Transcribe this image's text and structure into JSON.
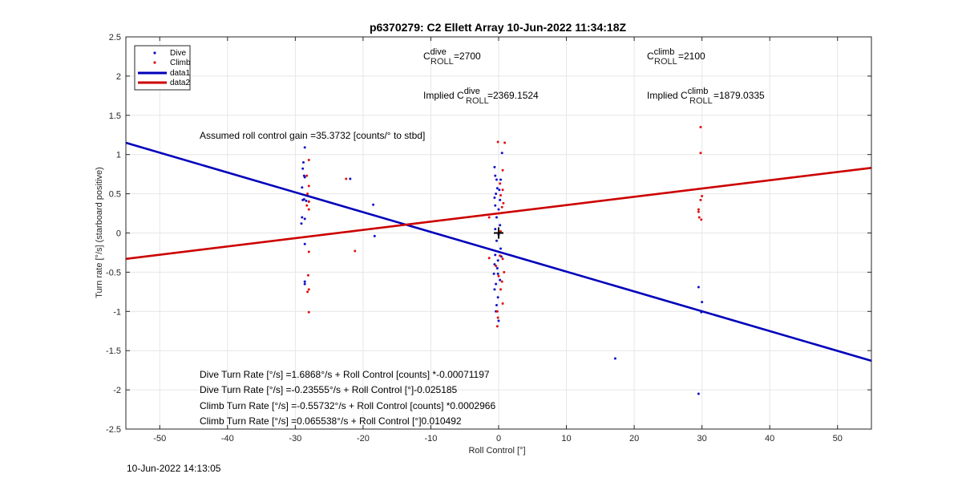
{
  "chart_data": {
    "type": "scatter",
    "title": "p6370279: C2 Ellett Array 10-Jun-2022 11:34:18Z",
    "xlabel": "Roll Control [°]",
    "ylabel": "Turn rate [°/s] (starboard positive)",
    "xlim": [
      -55,
      55
    ],
    "ylim": [
      -2.5,
      2.5
    ],
    "xticks": [
      -50,
      -40,
      -30,
      -20,
      -10,
      0,
      10,
      20,
      30,
      40,
      50
    ],
    "yticks": [
      -2.5,
      -2,
      -1.5,
      -1,
      -0.5,
      0,
      0.5,
      1,
      1.5,
      2,
      2.5
    ],
    "xtick_labels": [
      "-50",
      "-40",
      "-30",
      "-20",
      "-10",
      "0",
      "10",
      "20",
      "30",
      "40",
      "50"
    ],
    "ytick_labels": [
      "-2.5",
      "-2",
      "-1.5",
      "-1",
      "-0.5",
      "0",
      "0.5",
      "1",
      "1.5",
      "2",
      "2.5"
    ],
    "grid": true,
    "legend_position": "top-left",
    "legend": [
      "Dive",
      "Climb",
      "data1",
      "data2"
    ],
    "colors": {
      "dive": "#1010c8",
      "climb": "#e01010",
      "line1": "#0000bb",
      "line2": "#cc0000",
      "grid": "#e6e6e6",
      "axis": "#262626",
      "marker": "#000000"
    },
    "series": [
      {
        "name": "Dive",
        "kind": "points",
        "points": [
          [
            -28.6,
            1.09
          ],
          [
            -28.8,
            0.9
          ],
          [
            -28.9,
            0.82
          ],
          [
            -28.7,
            0.73
          ],
          [
            -28.6,
            0.71
          ],
          [
            -29.0,
            0.58
          ],
          [
            -28.7,
            0.43
          ],
          [
            -28.9,
            0.42
          ],
          [
            -28.4,
            0.41
          ],
          [
            -28.0,
            0.4
          ],
          [
            -29.0,
            0.2
          ],
          [
            -29.1,
            0.12
          ],
          [
            -28.6,
            0.18
          ],
          [
            -28.6,
            -0.14
          ],
          [
            -28.6,
            -0.62
          ],
          [
            -28.6,
            -0.65
          ],
          [
            -21.9,
            0.69
          ],
          [
            -18.5,
            0.36
          ],
          [
            -18.3,
            -0.04
          ],
          [
            0.5,
            1.02
          ],
          [
            -0.6,
            0.84
          ],
          [
            -0.5,
            0.73
          ],
          [
            -0.3,
            0.68
          ],
          [
            0.3,
            0.68
          ],
          [
            -0.2,
            0.57
          ],
          [
            0.1,
            0.55
          ],
          [
            -0.4,
            0.5
          ],
          [
            -0.6,
            0.45
          ],
          [
            0.2,
            0.42
          ],
          [
            -0.5,
            0.35
          ],
          [
            0.0,
            0.3
          ],
          [
            -0.3,
            0.2
          ],
          [
            0.2,
            0.1
          ],
          [
            -0.5,
            0.05
          ],
          [
            0.0,
            -0.02
          ],
          [
            -0.3,
            -0.1
          ],
          [
            0.3,
            -0.2
          ],
          [
            -0.5,
            -0.28
          ],
          [
            0.4,
            -0.3
          ],
          [
            -0.1,
            -0.35
          ],
          [
            -0.6,
            -0.4
          ],
          [
            -0.2,
            -0.45
          ],
          [
            -0.7,
            -0.52
          ],
          [
            -0.1,
            -0.52
          ],
          [
            0.2,
            -0.6
          ],
          [
            -0.4,
            -0.65
          ],
          [
            -0.6,
            -0.72
          ],
          [
            -0.1,
            -0.82
          ],
          [
            -0.3,
            -0.92
          ],
          [
            -0.4,
            -1.0
          ],
          [
            0.0,
            -1.12
          ],
          [
            17.2,
            -1.6
          ],
          [
            29.5,
            -0.69
          ],
          [
            30.0,
            -0.88
          ],
          [
            29.9,
            -1.01
          ],
          [
            29.5,
            -2.05
          ]
        ]
      },
      {
        "name": "Climb",
        "kind": "points",
        "points": [
          [
            -28.0,
            0.93
          ],
          [
            -28.3,
            0.73
          ],
          [
            -28.0,
            0.6
          ],
          [
            -28.2,
            0.5
          ],
          [
            -28.0,
            0.4
          ],
          [
            -28.3,
            0.35
          ],
          [
            -28.0,
            0.3
          ],
          [
            -28.0,
            -0.24
          ],
          [
            -28.1,
            -0.54
          ],
          [
            -28.0,
            -0.72
          ],
          [
            -28.2,
            -0.75
          ],
          [
            -28.0,
            -1.01
          ],
          [
            -21.2,
            -0.23
          ],
          [
            -22.5,
            0.69
          ],
          [
            -0.1,
            1.16
          ],
          [
            0.9,
            1.15
          ],
          [
            0.6,
            0.8
          ],
          [
            0.2,
            0.63
          ],
          [
            0.6,
            0.55
          ],
          [
            0.3,
            0.48
          ],
          [
            0.7,
            0.38
          ],
          [
            0.5,
            0.33
          ],
          [
            0.1,
            0.25
          ],
          [
            -1.4,
            0.2
          ],
          [
            0.3,
            0.02
          ],
          [
            -1.4,
            -0.32
          ],
          [
            0.2,
            -0.29
          ],
          [
            0.6,
            -0.33
          ],
          [
            -0.4,
            -0.42
          ],
          [
            0.8,
            -0.5
          ],
          [
            0.0,
            -0.55
          ],
          [
            0.5,
            -0.62
          ],
          [
            0.3,
            -0.72
          ],
          [
            0.6,
            -0.9
          ],
          [
            -0.2,
            -1.0
          ],
          [
            -0.1,
            -1.08
          ],
          [
            -0.2,
            -1.19
          ],
          [
            29.8,
            1.35
          ],
          [
            29.8,
            1.02
          ],
          [
            30.0,
            0.47
          ],
          [
            29.8,
            0.42
          ],
          [
            29.5,
            0.3
          ],
          [
            29.5,
            0.27
          ],
          [
            29.6,
            0.2
          ],
          [
            29.9,
            0.17
          ]
        ]
      },
      {
        "name": "data1",
        "kind": "line",
        "x": [
          -55,
          55
        ],
        "y": [
          1.15,
          -1.63
        ]
      },
      {
        "name": "data2",
        "kind": "line",
        "x": [
          -55,
          55
        ],
        "y": [
          -0.33,
          0.83
        ]
      }
    ],
    "marker_point": [
      0,
      0
    ],
    "annotations": {
      "c_dive_main": "C",
      "c_dive_sup": "dive",
      "c_dive_sub": "ROLL",
      "c_dive_value": " =2700",
      "c_climb_main": "C",
      "c_climb_sup": "climb",
      "c_climb_sub": "ROLL",
      "c_climb_value": " =2100",
      "implied_dive_prefix": "Implied C",
      "implied_dive_sup": "dive",
      "implied_dive_sub": "ROLL",
      "implied_dive_value": " =2369.1524",
      "implied_climb_prefix": "Implied C",
      "implied_climb_sup": "climb",
      "implied_climb_sub": "ROLL",
      "implied_climb_value": " =1879.0335",
      "gain": "Assumed roll control gain =35.3732 [counts/° to stbd]",
      "eq1": "Dive Turn Rate [°/s] =1.6868°/s + Roll Control [counts] *-0.00071197",
      "eq2": "Dive Turn Rate [°/s] =-0.23555°/s + Roll Control [°]-0.025185",
      "eq3": "Climb Turn Rate [°/s] =-0.55732°/s + Roll Control [counts] *0.0002966",
      "eq4": "Climb Turn Rate [°/s] =0.065538°/s + Roll Control [°]0.010492"
    }
  },
  "footer_timestamp": "10-Jun-2022 14:13:05"
}
